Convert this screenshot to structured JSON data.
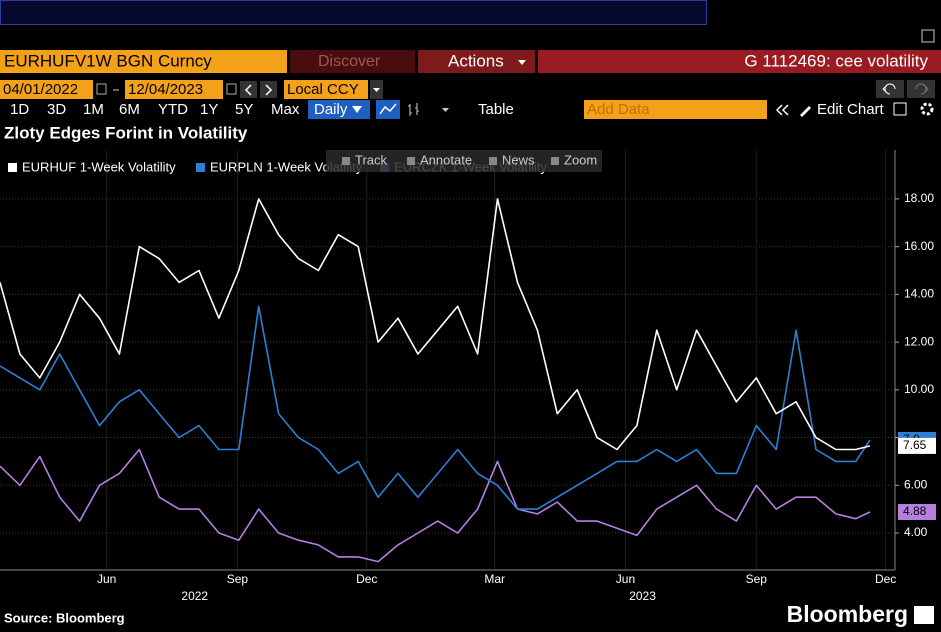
{
  "toolbar": {
    "security": "EURHUFV1W BGN Curncy",
    "discover": "Discover",
    "actions": "Actions",
    "page": "G 1112469: cee volatility",
    "start_date": "04/01/2022",
    "end_date": "12/04/2023",
    "currency": "Local CCY",
    "periods": [
      "1D",
      "3D",
      "1M",
      "6M",
      "YTD",
      "1Y",
      "5Y",
      "Max"
    ],
    "frequency": "Daily",
    "table": "Table",
    "add_data": "Add Data",
    "edit_chart": "Edit Chart"
  },
  "chart_tools": [
    "Track",
    "Annotate",
    "News",
    "Zoom"
  ],
  "chart_data": {
    "type": "line",
    "title": "Zloty Edges Forint in Volatility",
    "source": "Source: Bloomberg",
    "brand": "Bloomberg",
    "x": [
      "2022-04-01",
      "2022-04-15",
      "2022-04-29",
      "2022-05-13",
      "2022-05-27",
      "2022-06-10",
      "2022-06-24",
      "2022-07-08",
      "2022-07-22",
      "2022-08-05",
      "2022-08-19",
      "2022-09-02",
      "2022-09-16",
      "2022-09-30",
      "2022-10-14",
      "2022-10-28",
      "2022-11-11",
      "2022-11-25",
      "2022-12-09",
      "2022-12-23",
      "2023-01-06",
      "2023-01-20",
      "2023-02-03",
      "2023-02-17",
      "2023-03-03",
      "2023-03-17",
      "2023-03-31",
      "2023-04-14",
      "2023-04-28",
      "2023-05-12",
      "2023-05-26",
      "2023-06-09",
      "2023-06-23",
      "2023-07-07",
      "2023-07-21",
      "2023-08-04",
      "2023-08-18",
      "2023-09-01",
      "2023-09-15",
      "2023-09-29",
      "2023-10-13",
      "2023-10-27",
      "2023-11-10",
      "2023-11-24",
      "2023-12-04"
    ],
    "series": [
      {
        "name": "EURHUF 1-Week Volatility",
        "color": "#ffffff",
        "values": [
          14.5,
          11.5,
          10.5,
          12.0,
          14.0,
          13.0,
          11.5,
          16.0,
          15.5,
          14.5,
          15.0,
          13.0,
          15.0,
          18.0,
          16.5,
          15.5,
          15.0,
          16.5,
          16.0,
          12.0,
          13.0,
          11.5,
          12.5,
          13.5,
          11.5,
          18.0,
          14.5,
          12.5,
          9.0,
          10.0,
          8.0,
          7.5,
          8.5,
          12.5,
          10.0,
          12.5,
          11.0,
          9.5,
          10.5,
          9.0,
          9.5,
          8.0,
          7.5,
          7.5,
          7.65
        ]
      },
      {
        "name": "EURPLN 1-Week Volatility",
        "color": "#2f7fd6",
        "values": [
          11.0,
          10.5,
          10.0,
          11.5,
          10.0,
          8.5,
          9.5,
          10.0,
          9.0,
          8.0,
          8.5,
          7.5,
          7.5,
          13.5,
          9.0,
          8.0,
          7.5,
          6.5,
          7.0,
          5.5,
          6.5,
          5.5,
          6.5,
          7.5,
          6.5,
          6.0,
          5.0,
          5.0,
          5.5,
          6.0,
          6.5,
          7.0,
          7.0,
          7.5,
          7.0,
          7.5,
          6.5,
          6.5,
          8.5,
          7.5,
          12.5,
          7.5,
          7.0,
          7.0,
          7.9
        ]
      },
      {
        "name": "EURCZK 1-Week Volatility",
        "color": "#b57fe0",
        "values": [
          6.8,
          6.0,
          7.2,
          5.5,
          4.5,
          6.0,
          6.5,
          7.5,
          5.5,
          5.0,
          5.0,
          4.0,
          3.7,
          5.0,
          4.0,
          3.7,
          3.5,
          3.0,
          3.0,
          2.8,
          3.5,
          4.0,
          4.5,
          4.0,
          5.0,
          7.0,
          5.0,
          4.8,
          5.3,
          4.5,
          4.5,
          4.2,
          3.9,
          5.0,
          5.5,
          6.0,
          5.0,
          4.5,
          6.0,
          5.0,
          5.5,
          5.5,
          4.8,
          4.6,
          4.88
        ]
      }
    ],
    "xlim": [
      "2022-04-01",
      "2023-12-04"
    ],
    "xticks": [
      {
        "value": "2022-06-15",
        "label": "Jun"
      },
      {
        "value": "2022-09-15",
        "label": "Sep"
      },
      {
        "value": "2022-12-15",
        "label": "Dec"
      },
      {
        "value": "2023-03-15",
        "label": "Mar"
      },
      {
        "value": "2023-06-15",
        "label": "Jun"
      },
      {
        "value": "2023-09-15",
        "label": "Sep"
      },
      {
        "value": "2023-12-15",
        "label": "Dec"
      }
    ],
    "year_ticks": [
      {
        "value": "2022-08-16",
        "label": "2022"
      },
      {
        "value": "2023-06-27",
        "label": "2023"
      }
    ],
    "ylim": [
      2.45,
      20.05
    ],
    "yticks": [
      {
        "value": 4,
        "label": "4.00"
      },
      {
        "value": 6,
        "label": "6.00"
      },
      {
        "value": 8,
        "label": "8.00"
      },
      {
        "value": 10,
        "label": "10.00"
      },
      {
        "value": 12,
        "label": "12.00"
      },
      {
        "value": 14,
        "label": "14.00"
      },
      {
        "value": 16,
        "label": "16.00"
      },
      {
        "value": 18,
        "label": "18.00"
      }
    ],
    "grid": true,
    "legend": "top-left"
  }
}
